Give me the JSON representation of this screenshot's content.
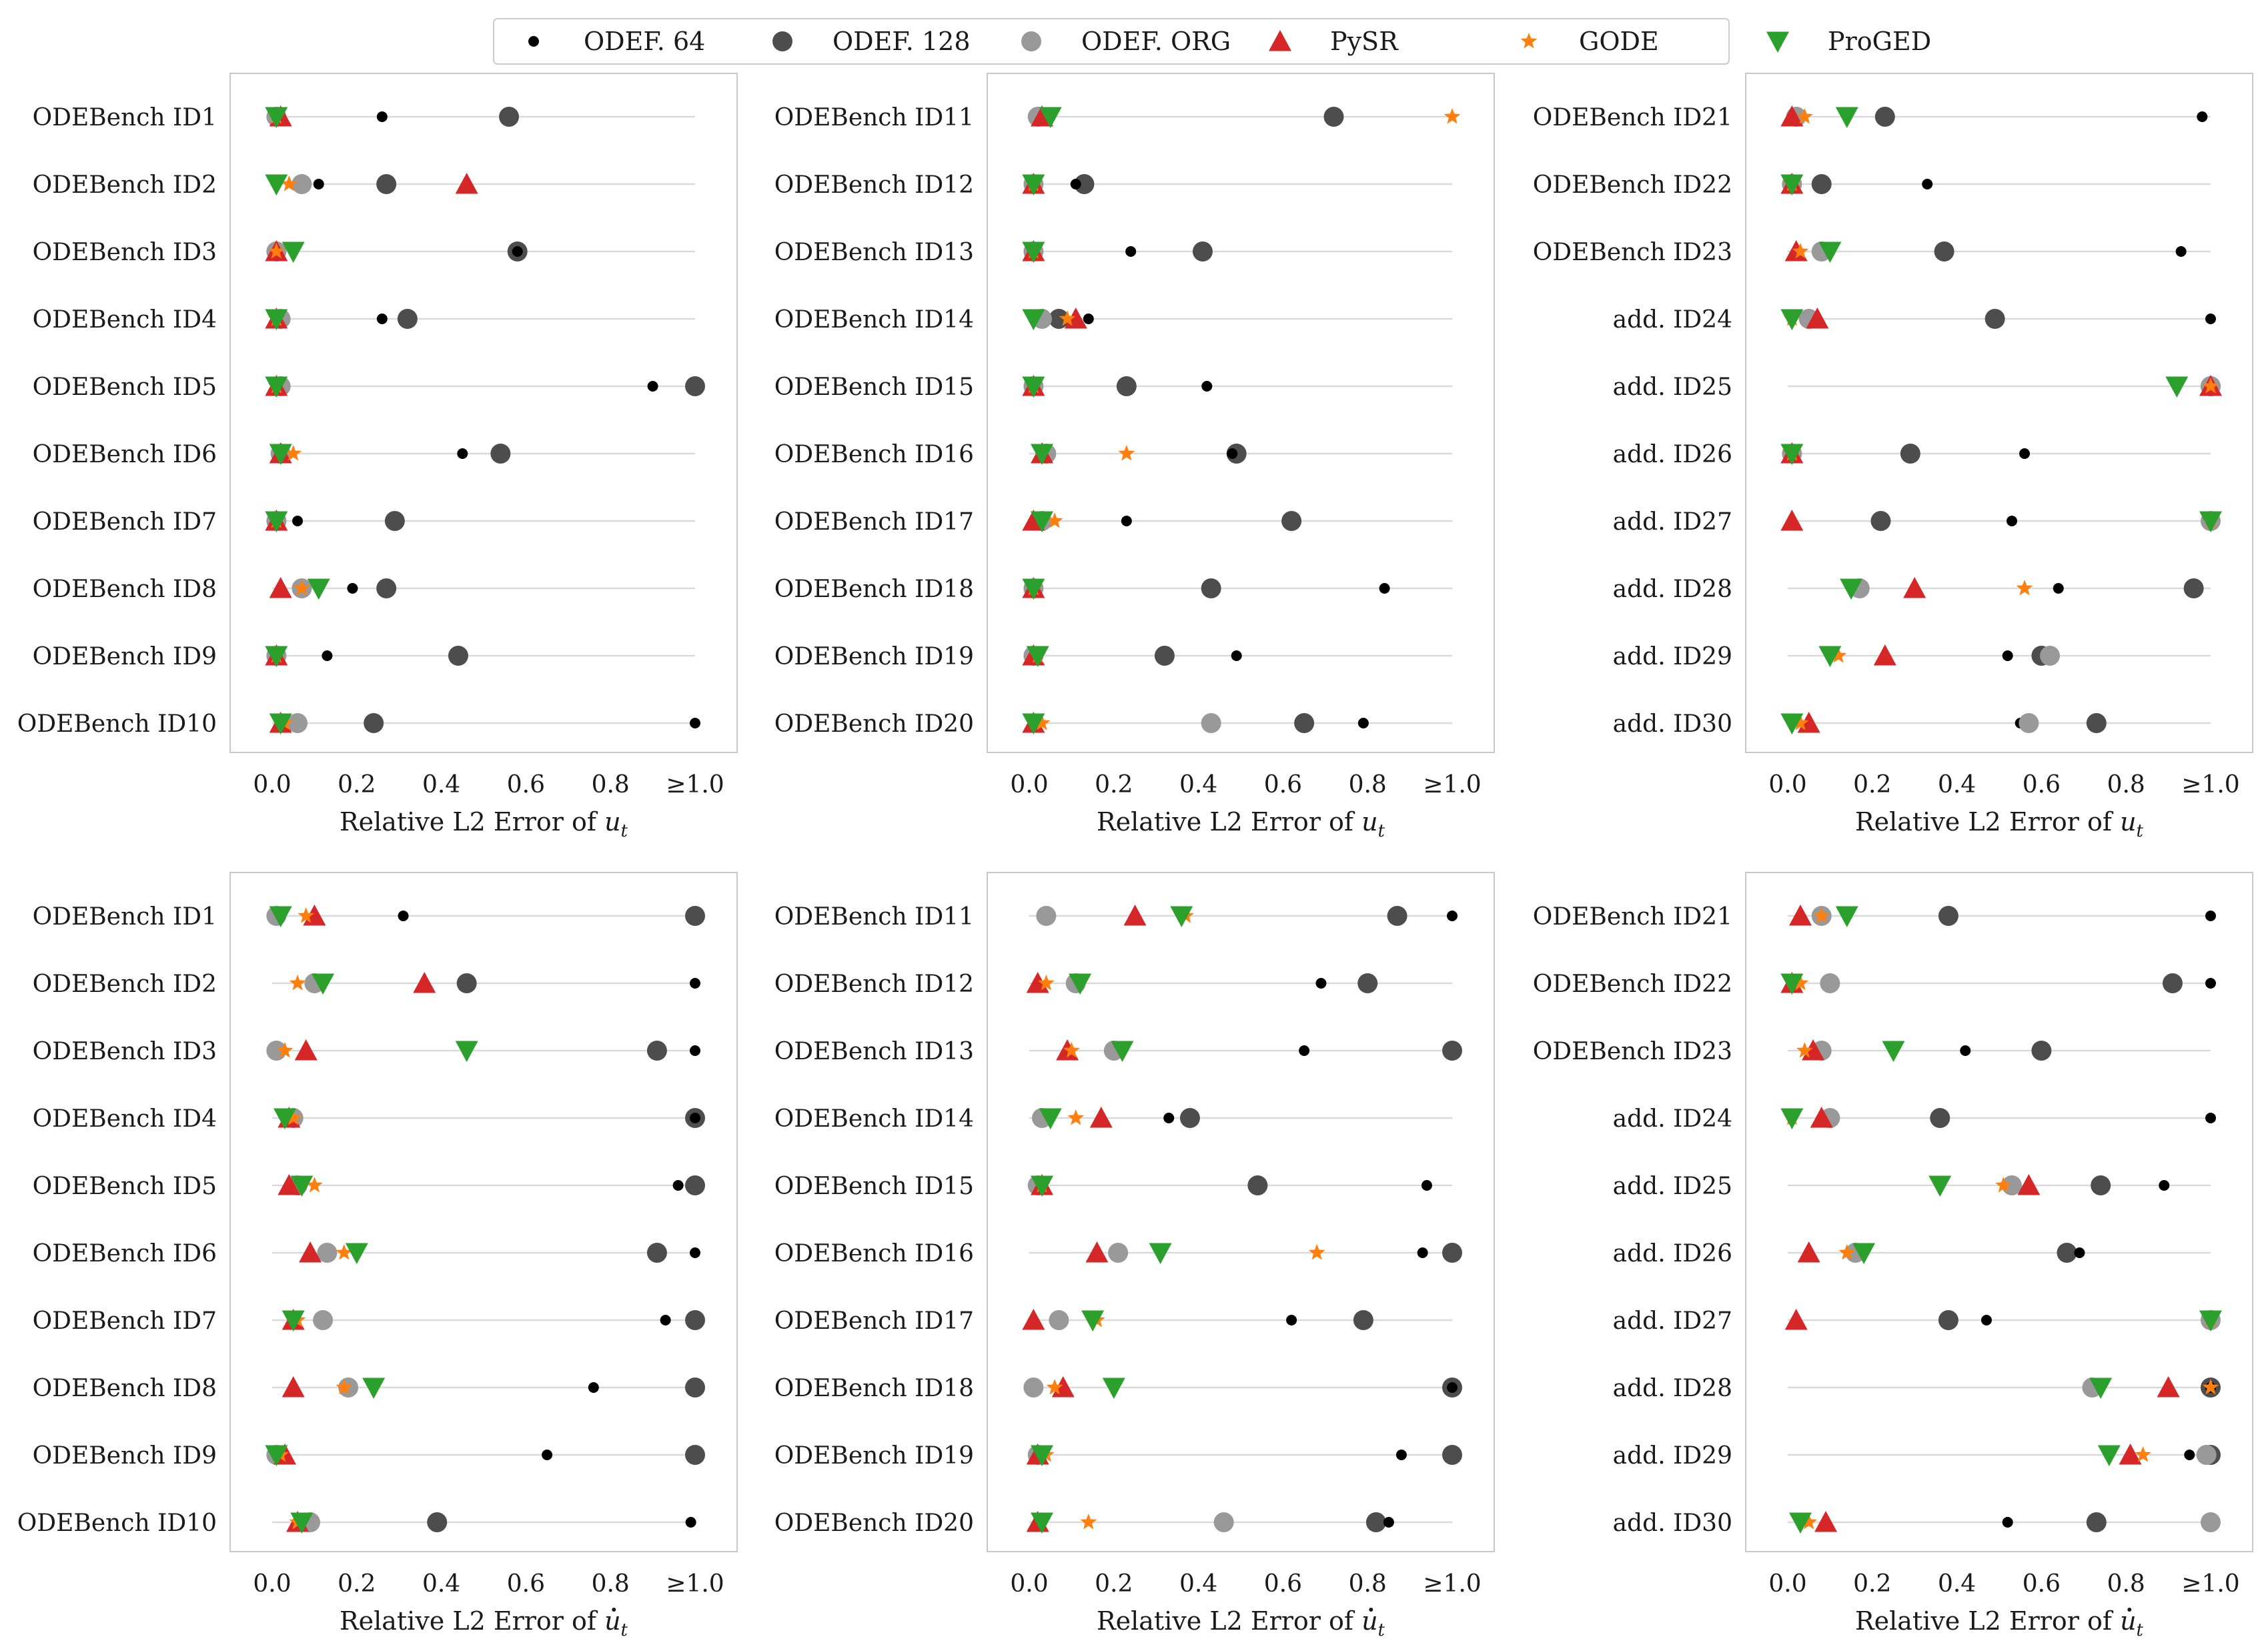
{
  "legend": [
    {
      "key": "o64",
      "label": "ODEF. 64"
    },
    {
      "key": "o128",
      "label": "ODEF. 128"
    },
    {
      "key": "org",
      "label": "ODEF. ORG"
    },
    {
      "key": "pysr",
      "label": "PySR"
    },
    {
      "key": "gode",
      "label": "GODE"
    },
    {
      "key": "proged",
      "label": "ProGED"
    }
  ],
  "styles": {
    "o64": {
      "color": "#000000",
      "marker": "small-circle"
    },
    "o128": {
      "color": "#4d4d4d",
      "marker": "circle"
    },
    "org": {
      "color": "#999999",
      "marker": "circle"
    },
    "pysr": {
      "color": "#d62728",
      "marker": "triangle-up"
    },
    "gode": {
      "color": "#ff7f0e",
      "marker": "star"
    },
    "proged": {
      "color": "#2ca02c",
      "marker": "triangle-down"
    }
  },
  "xtick_labels": [
    "0.0",
    "0.2",
    "0.4",
    "0.6",
    "0.8",
    "≥1.0"
  ],
  "chart_data": [
    {
      "type": "scatter",
      "xlabel_main": "Relative L2 Error of ",
      "xlabel_var": "u",
      "xlabel_sub": "t",
      "xlabel_dot": false,
      "xlim": [
        0,
        1
      ],
      "categories": [
        "ODEBench ID1",
        "ODEBench ID2",
        "ODEBench ID3",
        "ODEBench ID4",
        "ODEBench ID5",
        "ODEBench ID6",
        "ODEBench ID7",
        "ODEBench ID8",
        "ODEBench ID9",
        "ODEBench ID10"
      ],
      "series": [
        {
          "key": "o64",
          "name": "ODEF. 64",
          "values": [
            0.26,
            0.11,
            0.58,
            0.26,
            0.9,
            0.45,
            0.06,
            0.19,
            0.13,
            1.0
          ]
        },
        {
          "key": "o128",
          "name": "ODEF. 128",
          "values": [
            0.56,
            0.27,
            0.58,
            0.32,
            1.0,
            0.54,
            0.29,
            0.27,
            0.44,
            0.24
          ]
        },
        {
          "key": "org",
          "name": "ODEF. ORG",
          "values": [
            0.01,
            0.07,
            0.01,
            0.02,
            0.02,
            0.02,
            0.01,
            0.07,
            0.01,
            0.06
          ]
        },
        {
          "key": "pysr",
          "name": "PySR",
          "values": [
            0.02,
            0.46,
            0.01,
            0.01,
            0.01,
            0.02,
            0.01,
            0.02,
            0.01,
            0.02
          ]
        },
        {
          "key": "gode",
          "name": "GODE",
          "values": [
            0.01,
            0.04,
            0.01,
            0.01,
            0.01,
            0.05,
            0.01,
            0.07,
            0.01,
            0.03
          ]
        },
        {
          "key": "proged",
          "name": "ProGED",
          "values": [
            0.01,
            0.01,
            0.05,
            0.01,
            0.01,
            0.02,
            0.01,
            0.11,
            0.01,
            0.02
          ]
        }
      ]
    },
    {
      "type": "scatter",
      "xlabel_main": "Relative L2 Error of ",
      "xlabel_var": "u",
      "xlabel_sub": "t",
      "xlabel_dot": false,
      "xlim": [
        0,
        1
      ],
      "categories": [
        "ODEBench ID11",
        "ODEBench ID12",
        "ODEBench ID13",
        "ODEBench ID14",
        "ODEBench ID15",
        "ODEBench ID16",
        "ODEBench ID17",
        "ODEBench ID18",
        "ODEBench ID19",
        "ODEBench ID20"
      ],
      "series": [
        {
          "key": "o64",
          "name": "ODEF. 64",
          "values": [
            0.02,
            0.11,
            0.24,
            0.14,
            0.42,
            0.48,
            0.23,
            0.84,
            0.49,
            0.79
          ]
        },
        {
          "key": "o128",
          "name": "ODEF. 128",
          "values": [
            0.72,
            0.13,
            0.41,
            0.07,
            0.23,
            0.49,
            0.62,
            0.43,
            0.32,
            0.65
          ]
        },
        {
          "key": "org",
          "name": "ODEF. ORG",
          "values": [
            0.02,
            0.01,
            0.01,
            0.03,
            0.01,
            0.04,
            0.03,
            0.01,
            0.01,
            0.43
          ]
        },
        {
          "key": "pysr",
          "name": "PySR",
          "values": [
            0.03,
            0.01,
            0.01,
            0.11,
            0.01,
            0.03,
            0.01,
            0.01,
            0.01,
            0.01
          ]
        },
        {
          "key": "gode",
          "name": "GODE",
          "values": [
            1.0,
            0.01,
            0.01,
            0.09,
            0.01,
            0.23,
            0.06,
            0.01,
            0.02,
            0.03
          ]
        },
        {
          "key": "proged",
          "name": "ProGED",
          "values": [
            0.05,
            0.01,
            0.01,
            0.01,
            0.01,
            0.03,
            0.03,
            0.01,
            0.02,
            0.01
          ]
        }
      ]
    },
    {
      "type": "scatter",
      "xlabel_main": "Relative L2 Error of ",
      "xlabel_var": "u",
      "xlabel_sub": "t",
      "xlabel_dot": false,
      "xlim": [
        0,
        1
      ],
      "categories": [
        "ODEBench ID21",
        "ODEBench ID22",
        "ODEBench ID23",
        "add. ID24",
        "add. ID25",
        "add. ID26",
        "add. ID27",
        "add. ID28",
        "add. ID29",
        "add. ID30"
      ],
      "series": [
        {
          "key": "o64",
          "name": "ODEF. 64",
          "values": [
            0.98,
            0.33,
            0.93,
            1.0,
            1.0,
            0.56,
            0.53,
            0.64,
            0.52,
            0.55
          ]
        },
        {
          "key": "o128",
          "name": "ODEF. 128",
          "values": [
            0.23,
            0.08,
            0.37,
            0.49,
            1.0,
            0.29,
            0.22,
            0.96,
            0.6,
            0.73
          ]
        },
        {
          "key": "org",
          "name": "ODEF. ORG",
          "values": [
            0.02,
            0.01,
            0.08,
            0.05,
            1.0,
            0.01,
            1.0,
            0.17,
            0.62,
            0.57
          ]
        },
        {
          "key": "pysr",
          "name": "PySR",
          "values": [
            0.01,
            0.01,
            0.02,
            0.07,
            1.0,
            0.01,
            0.01,
            0.3,
            0.23,
            0.05
          ]
        },
        {
          "key": "gode",
          "name": "GODE",
          "values": [
            0.04,
            0.01,
            0.03,
            0.01,
            1.0,
            0.01,
            1.0,
            0.56,
            0.12,
            0.03
          ]
        },
        {
          "key": "proged",
          "name": "ProGED",
          "values": [
            0.14,
            0.01,
            0.1,
            0.01,
            0.92,
            0.01,
            1.0,
            0.15,
            0.1,
            0.01
          ]
        }
      ]
    },
    {
      "type": "scatter",
      "xlabel_main": "Relative L2 Error of ",
      "xlabel_var": "u",
      "xlabel_sub": "t",
      "xlabel_dot": true,
      "xlim": [
        0,
        1
      ],
      "categories": [
        "ODEBench ID1",
        "ODEBench ID2",
        "ODEBench ID3",
        "ODEBench ID4",
        "ODEBench ID5",
        "ODEBench ID6",
        "ODEBench ID7",
        "ODEBench ID8",
        "ODEBench ID9",
        "ODEBench ID10"
      ],
      "series": [
        {
          "key": "o64",
          "name": "ODEF. 64",
          "values": [
            0.31,
            1.0,
            1.0,
            1.0,
            0.96,
            1.0,
            0.93,
            0.76,
            0.65,
            0.99
          ]
        },
        {
          "key": "o128",
          "name": "ODEF. 128",
          "values": [
            1.0,
            0.46,
            0.91,
            1.0,
            1.0,
            0.91,
            1.0,
            1.0,
            1.0,
            0.39
          ]
        },
        {
          "key": "org",
          "name": "ODEF. ORG",
          "values": [
            0.01,
            0.1,
            0.01,
            0.05,
            0.06,
            0.13,
            0.12,
            0.18,
            0.01,
            0.09
          ]
        },
        {
          "key": "pysr",
          "name": "PySR",
          "values": [
            0.1,
            0.36,
            0.08,
            0.04,
            0.04,
            0.09,
            0.05,
            0.05,
            0.03,
            0.06
          ]
        },
        {
          "key": "gode",
          "name": "GODE",
          "values": [
            0.08,
            0.06,
            0.03,
            0.05,
            0.1,
            0.17,
            0.06,
            0.17,
            0.02,
            0.06
          ]
        },
        {
          "key": "proged",
          "name": "ProGED",
          "values": [
            0.02,
            0.12,
            0.46,
            0.03,
            0.07,
            0.2,
            0.05,
            0.24,
            0.01,
            0.07
          ]
        }
      ]
    },
    {
      "type": "scatter",
      "xlabel_main": "Relative L2 Error of ",
      "xlabel_var": "u",
      "xlabel_sub": "t",
      "xlabel_dot": true,
      "xlim": [
        0,
        1
      ],
      "categories": [
        "ODEBench ID11",
        "ODEBench ID12",
        "ODEBench ID13",
        "ODEBench ID14",
        "ODEBench ID15",
        "ODEBench ID16",
        "ODEBench ID17",
        "ODEBench ID18",
        "ODEBench ID19",
        "ODEBench ID20"
      ],
      "series": [
        {
          "key": "o64",
          "name": "ODEF. 64",
          "values": [
            1.0,
            0.69,
            0.65,
            0.33,
            0.94,
            0.93,
            0.62,
            1.0,
            0.88,
            0.85
          ]
        },
        {
          "key": "o128",
          "name": "ODEF. 128",
          "values": [
            0.87,
            0.8,
            1.0,
            0.38,
            0.54,
            1.0,
            0.79,
            1.0,
            1.0,
            0.82
          ]
        },
        {
          "key": "org",
          "name": "ODEF. ORG",
          "values": [
            0.04,
            0.11,
            0.2,
            0.03,
            0.02,
            0.21,
            0.07,
            0.01,
            0.02,
            0.46
          ]
        },
        {
          "key": "pysr",
          "name": "PySR",
          "values": [
            0.25,
            0.02,
            0.09,
            0.17,
            0.03,
            0.16,
            0.01,
            0.08,
            0.02,
            0.02
          ]
        },
        {
          "key": "gode",
          "name": "GODE",
          "values": [
            0.37,
            0.04,
            0.1,
            0.11,
            0.03,
            0.68,
            0.16,
            0.06,
            0.04,
            0.14
          ]
        },
        {
          "key": "proged",
          "name": "ProGED",
          "values": [
            0.36,
            0.12,
            0.22,
            0.05,
            0.03,
            0.31,
            0.15,
            0.2,
            0.03,
            0.03
          ]
        }
      ]
    },
    {
      "type": "scatter",
      "xlabel_main": "Relative L2 Error of ",
      "xlabel_var": "u",
      "xlabel_sub": "t",
      "xlabel_dot": true,
      "xlim": [
        0,
        1
      ],
      "categories": [
        "ODEBench ID21",
        "ODEBench ID22",
        "ODEBench ID23",
        "add. ID24",
        "add. ID25",
        "add. ID26",
        "add. ID27",
        "add. ID28",
        "add. ID29",
        "add. ID30"
      ],
      "series": [
        {
          "key": "o64",
          "name": "ODEF. 64",
          "values": [
            1.0,
            1.0,
            0.42,
            1.0,
            0.89,
            0.69,
            0.47,
            1.0,
            0.95,
            0.52
          ]
        },
        {
          "key": "o128",
          "name": "ODEF. 128",
          "values": [
            0.38,
            0.91,
            0.6,
            0.36,
            0.74,
            0.66,
            0.38,
            1.0,
            1.0,
            0.73
          ]
        },
        {
          "key": "org",
          "name": "ODEF. ORG",
          "values": [
            0.08,
            0.1,
            0.08,
            0.1,
            0.53,
            0.16,
            1.0,
            0.72,
            0.99,
            1.0
          ]
        },
        {
          "key": "pysr",
          "name": "PySR",
          "values": [
            0.03,
            0.01,
            0.06,
            0.08,
            0.57,
            0.05,
            0.02,
            0.9,
            0.81,
            0.09
          ]
        },
        {
          "key": "gode",
          "name": "GODE",
          "values": [
            0.08,
            0.03,
            0.04,
            0.01,
            0.51,
            0.14,
            1.0,
            1.0,
            0.84,
            0.05
          ]
        },
        {
          "key": "proged",
          "name": "ProGED",
          "values": [
            0.14,
            0.01,
            0.25,
            0.01,
            0.36,
            0.18,
            1.0,
            0.74,
            0.76,
            0.03
          ]
        }
      ]
    }
  ]
}
